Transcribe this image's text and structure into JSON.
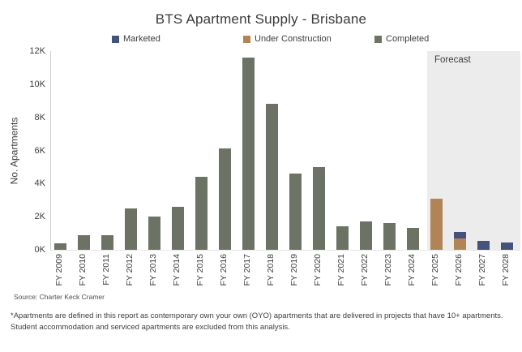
{
  "title": "BTS Apartment Supply - Brisbane",
  "legend": [
    {
      "label": "Marketed",
      "color": "#44527c"
    },
    {
      "label": "Under Construction",
      "color": "#b28455"
    },
    {
      "label": "Completed",
      "color": "#6d7364"
    }
  ],
  "source": "Source: Charter Keck Cramer",
  "footnote": "*Apartments are defined in this report as contemporary own your own (OYO) apartments that are delivered in projects that have 10+ apartments. Student accommodation and serviced apartments are excluded from this analysis.",
  "chart_data": {
    "type": "bar",
    "stacked": true,
    "title": "BTS Apartment Supply - Brisbane",
    "xlabel": "",
    "ylabel": "No. Apartments",
    "ylim": [
      0,
      12000
    ],
    "ytick_step": 2000,
    "ytick_labels": [
      "0K",
      "2K",
      "4K",
      "6K",
      "8K",
      "10K",
      "12K"
    ],
    "grid": false,
    "legend_position": "top",
    "categories": [
      "FY 2009",
      "FY 2010",
      "FY 2011",
      "FY 2012",
      "FY 2013",
      "FY 2014",
      "FY 2015",
      "FY 2016",
      "FY 2017",
      "FY 2018",
      "FY 2019",
      "FY 2020",
      "FY 2021",
      "FY 2022",
      "FY 2023",
      "FY 2024",
      "FY 2025",
      "FY 2026",
      "FY 2027",
      "FY 2028"
    ],
    "series": [
      {
        "name": "Completed",
        "color": "#6d7364",
        "values": [
          400,
          900,
          900,
          2500,
          2000,
          2600,
          4400,
          6100,
          11600,
          8800,
          4600,
          5000,
          1400,
          1700,
          1600,
          1300,
          0,
          0,
          0,
          0
        ]
      },
      {
        "name": "Under Construction",
        "color": "#b28455",
        "values": [
          0,
          0,
          0,
          0,
          0,
          0,
          0,
          0,
          0,
          0,
          0,
          0,
          0,
          0,
          0,
          0,
          3100,
          700,
          0,
          0
        ]
      },
      {
        "name": "Marketed",
        "color": "#44527c",
        "values": [
          0,
          0,
          0,
          0,
          0,
          0,
          0,
          0,
          0,
          0,
          0,
          0,
          0,
          0,
          0,
          0,
          0,
          400,
          550,
          450
        ]
      }
    ],
    "forecast_region": {
      "label": "Forecast",
      "categories": [
        "FY 2025",
        "FY 2026",
        "FY 2027",
        "FY 2028"
      ],
      "background": "#ececec"
    }
  }
}
